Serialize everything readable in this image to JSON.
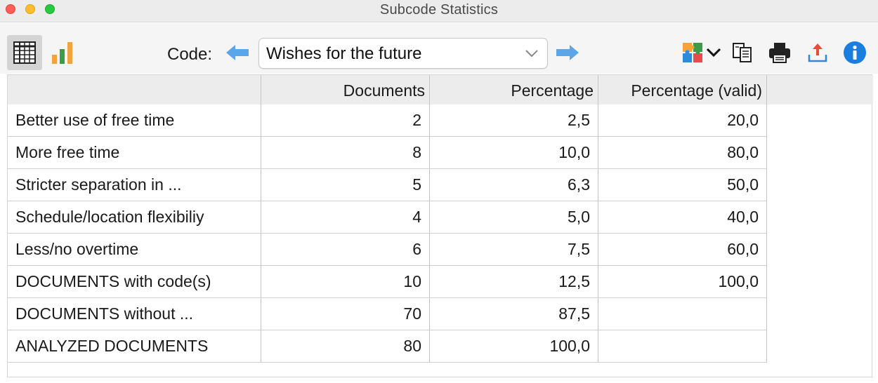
{
  "window": {
    "title": "Subcode Statistics"
  },
  "toolbar": {
    "view_table_icon": "table-grid-icon",
    "view_chart_icon": "bar-chart-icon",
    "code_label": "Code:",
    "selected_code": "Wishes for the future",
    "prev_icon": "arrow-left-icon",
    "next_icon": "arrow-right-icon",
    "icons": [
      "puzzle-icon",
      "chevron-down-icon",
      "copy-icon",
      "print-icon",
      "export-icon",
      "info-icon"
    ],
    "accent_color": "#1a7de0"
  },
  "table": {
    "columns": [
      "",
      "Documents",
      "Percentage",
      "Percentage (valid)"
    ],
    "rows": [
      {
        "name": "Better use of free time",
        "documents": "2",
        "percentage": "2,5",
        "valid": "20,0"
      },
      {
        "name": "More free time",
        "documents": "8",
        "percentage": "10,0",
        "valid": "80,0"
      },
      {
        "name": "Stricter separation in ...",
        "documents": "5",
        "percentage": "6,3",
        "valid": "50,0"
      },
      {
        "name": "Schedule/location flexibiliy",
        "documents": "4",
        "percentage": "5,0",
        "valid": "40,0"
      },
      {
        "name": "Less/no overtime",
        "documents": "6",
        "percentage": "7,5",
        "valid": "60,0"
      },
      {
        "name": "DOCUMENTS with code(s)",
        "documents": "10",
        "percentage": "12,5",
        "valid": "100,0"
      },
      {
        "name": "DOCUMENTS without ...",
        "documents": "70",
        "percentage": "87,5",
        "valid": ""
      },
      {
        "name": "ANALYZED DOCUMENTS",
        "documents": "80",
        "percentage": "100,0",
        "valid": ""
      }
    ]
  }
}
